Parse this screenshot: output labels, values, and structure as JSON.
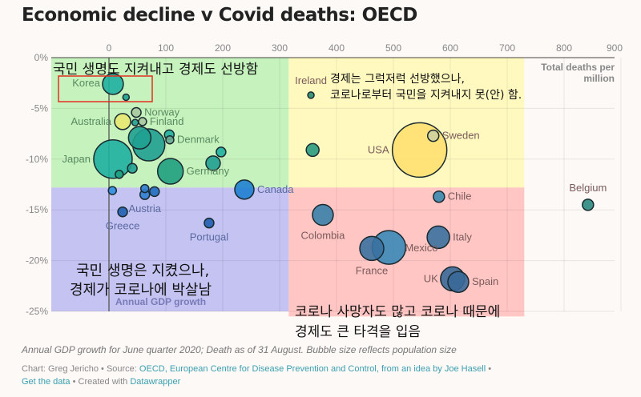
{
  "title": "Economic decline v Covid deaths: OECD",
  "chart_data": {
    "type": "scatter",
    "subtype": "bubble",
    "xlabel": "Total deaths per million",
    "ylabel": "Annual GDP growth",
    "xlim": [
      0,
      900
    ],
    "ylim": [
      -25,
      0
    ],
    "x_ticks": [
      "0",
      "100",
      "200",
      "300",
      "400",
      "500",
      "600",
      "700",
      "800",
      "900"
    ],
    "y_ticks": [
      "0%",
      "-5%",
      "-10%",
      "-15%",
      "-20%",
      "-25%"
    ],
    "grid": true,
    "points": [
      {
        "label": "Korea",
        "x": 7,
        "y": -2.6,
        "size": 13,
        "color": "#1fb0a0"
      },
      {
        "label": "",
        "x": 30,
        "y": -3.9,
        "size": 4,
        "color": "#1fa090"
      },
      {
        "label": "Norway",
        "x": 48,
        "y": -5.4,
        "size": 6,
        "color": "#a8c8a0"
      },
      {
        "label": "Australia",
        "x": 24,
        "y": -6.3,
        "size": 10,
        "color": "#e8e870"
      },
      {
        "label": "",
        "x": 46,
        "y": -6.4,
        "size": 4,
        "color": "#1fa090"
      },
      {
        "label": "Finland",
        "x": 59,
        "y": -6.3,
        "size": 5,
        "color": "#a8c8a0"
      },
      {
        "label": "",
        "x": 54,
        "y": -7.9,
        "size": 14,
        "color": "#1fa090"
      },
      {
        "label": "",
        "x": 70,
        "y": -8.6,
        "size": 20,
        "color": "#1fa090"
      },
      {
        "label": "",
        "x": 106,
        "y": -7.6,
        "size": 6,
        "color": "#1fb0a0"
      },
      {
        "label": "Denmark",
        "x": 107,
        "y": -8.1,
        "size": 5,
        "color": "#6aa890"
      },
      {
        "label": "Japan",
        "x": 7,
        "y": -10,
        "size": 24,
        "color": "#1fb0a0"
      },
      {
        "label": "",
        "x": 41,
        "y": -10.9,
        "size": 6,
        "color": "#1fa090"
      },
      {
        "label": "Germany",
        "x": 108,
        "y": -11.2,
        "size": 16,
        "color": "#1fa080"
      },
      {
        "label": "",
        "x": 197,
        "y": -9.3,
        "size": 6,
        "color": "#1fb0a0"
      },
      {
        "label": "",
        "x": 183,
        "y": -10.4,
        "size": 9,
        "color": "#1fa090"
      },
      {
        "label": "",
        "x": 18,
        "y": -11.5,
        "size": 5,
        "color": "#1fa080"
      },
      {
        "label": "Canada",
        "x": 238,
        "y": -13,
        "size": 12,
        "color": "#1f7fd0"
      },
      {
        "label": "",
        "x": 6,
        "y": -13.1,
        "size": 5,
        "color": "#2f8fe0"
      },
      {
        "label": "",
        "x": 63,
        "y": -12.9,
        "size": 5,
        "color": "#2f7fd0"
      },
      {
        "label": "Austria",
        "x": 63,
        "y": -13.5,
        "size": 6,
        "color": "#2f7fd0"
      },
      {
        "label": "",
        "x": 80,
        "y": -13.2,
        "size": 6,
        "color": "#1f6fc0"
      },
      {
        "label": "Greece",
        "x": 24,
        "y": -15.2,
        "size": 6,
        "color": "#1f5fb0"
      },
      {
        "label": "Portugal",
        "x": 176,
        "y": -16.3,
        "size": 6,
        "color": "#1f5fb0"
      },
      {
        "label": "Ireland",
        "x": 355,
        "y": -3.7,
        "size": 4,
        "color": "#2a8a70"
      },
      {
        "label": "",
        "x": 358,
        "y": -9.1,
        "size": 8,
        "color": "#2a9a80"
      },
      {
        "label": "USA",
        "x": 546,
        "y": -9.1,
        "size": 34,
        "color": "#ffe070"
      },
      {
        "label": "Sweden",
        "x": 570,
        "y": -7.7,
        "size": 7,
        "color": "#d0d0a0"
      },
      {
        "label": "Belgium",
        "x": 842,
        "y": -14.5,
        "size": 7,
        "color": "#2a8a80"
      },
      {
        "label": "Chile",
        "x": 580,
        "y": -13.7,
        "size": 7,
        "color": "#3a88b0"
      },
      {
        "label": "Colombia",
        "x": 376,
        "y": -15.5,
        "size": 13,
        "color": "#3a80a8"
      },
      {
        "label": "Italy",
        "x": 579,
        "y": -17.7,
        "size": 14,
        "color": "#3a70a0"
      },
      {
        "label": "France",
        "x": 462,
        "y": -18.8,
        "size": 15,
        "color": "#3a70a0"
      },
      {
        "label": "Mexico",
        "x": 492,
        "y": -18.7,
        "size": 21,
        "color": "#3a88b8"
      },
      {
        "label": "UK",
        "x": 604,
        "y": -21.8,
        "size": 15,
        "color": "#3a6898"
      },
      {
        "label": "Spain",
        "x": 614,
        "y": -22.1,
        "size": 13,
        "color": "#3a6898"
      }
    ],
    "quadrant_colors": {
      "top_left": "#c6f2bd",
      "top_right": "#fff9bf",
      "bottom_left": "#c4c3f2",
      "bottom_right": "#ffc6c4"
    },
    "highlight_color": "#e03020"
  },
  "annotations": {
    "top_left": "국민 생명도 지켜내고 경제도 선방함",
    "top_right_1": "경제는 그럭저럭 선방했으나,",
    "top_right_2": "코로나로부터 국민을 지켜내지 못(안) 함.",
    "bottom_left_1": "국민 생명은 지켰으나,",
    "bottom_left_2": "경제가 코로나에 박살남",
    "bottom_right_1": "코로나 사망자도 많고 코로나 때문에",
    "bottom_right_2": "경제도 큰 타격을 입음"
  },
  "footer": {
    "notes": "Annual GDP growth for June quarter 2020; Death as of 31 August. Bubble size reflects population size",
    "chart_by": "Chart: Greg Jericho • Source: ",
    "source": "OECD, European Centre for Disease Prevention and Control, from an idea by Joe Hasell",
    "sep1": " •",
    "get_data": "Get the data",
    "created": " • Created with ",
    "tool": "Datawrapper"
  }
}
